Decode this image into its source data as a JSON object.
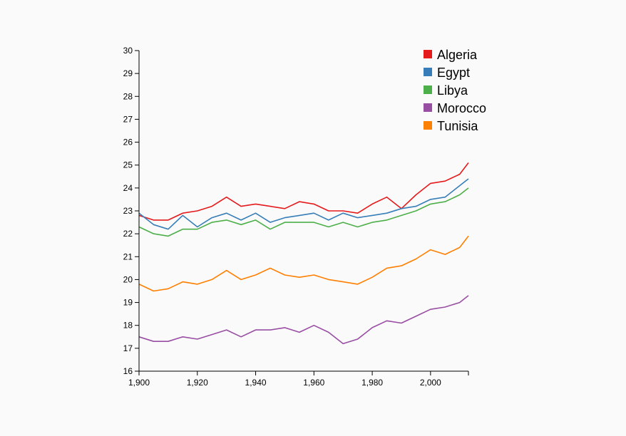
{
  "chart_data": {
    "type": "line",
    "title": "",
    "xlabel": "",
    "ylabel": "",
    "xlim": [
      1900,
      2013
    ],
    "ylim": [
      16,
      30
    ],
    "grid": false,
    "legend_position": "top-right",
    "xticks": [
      1900,
      1920,
      1940,
      1960,
      1980,
      2000
    ],
    "xtick_labels": [
      "1,900",
      "1,920",
      "1,940",
      "1,960",
      "1,980",
      "2,000"
    ],
    "yticks": [
      16,
      17,
      18,
      19,
      20,
      21,
      22,
      23,
      24,
      25,
      26,
      27,
      28,
      29,
      30
    ],
    "ytick_labels": [
      "16",
      "17",
      "18",
      "19",
      "20",
      "21",
      "22",
      "23",
      "24",
      "25",
      "26",
      "27",
      "28",
      "29",
      "30"
    ],
    "x": [
      1900,
      1905,
      1910,
      1915,
      1920,
      1925,
      1930,
      1935,
      1940,
      1945,
      1950,
      1955,
      1960,
      1965,
      1970,
      1975,
      1980,
      1985,
      1990,
      1995,
      2000,
      2005,
      2010,
      2013
    ],
    "series": [
      {
        "name": "Algeria",
        "color": "#e41a1c",
        "values": [
          22.8,
          22.6,
          22.6,
          22.9,
          23.0,
          23.2,
          23.6,
          23.2,
          23.3,
          23.2,
          23.1,
          23.4,
          23.3,
          23.0,
          23.0,
          22.9,
          23.3,
          23.6,
          23.1,
          23.7,
          24.2,
          24.3,
          24.6,
          25.1
        ]
      },
      {
        "name": "Egypt",
        "color": "#377eb8",
        "values": [
          22.9,
          22.4,
          22.2,
          22.8,
          22.3,
          22.7,
          22.9,
          22.6,
          22.9,
          22.5,
          22.7,
          22.8,
          22.9,
          22.6,
          22.9,
          22.7,
          22.8,
          22.9,
          23.1,
          23.2,
          23.5,
          23.6,
          24.1,
          24.4
        ]
      },
      {
        "name": "Libya",
        "color": "#4daf4a",
        "values": [
          22.3,
          22.0,
          21.9,
          22.2,
          22.2,
          22.5,
          22.6,
          22.4,
          22.6,
          22.2,
          22.5,
          22.5,
          22.5,
          22.3,
          22.5,
          22.3,
          22.5,
          22.6,
          22.8,
          23.0,
          23.3,
          23.4,
          23.7,
          24.0
        ]
      },
      {
        "name": "Morocco",
        "color": "#984ea3",
        "values": [
          17.5,
          17.3,
          17.3,
          17.5,
          17.4,
          17.6,
          17.8,
          17.5,
          17.8,
          17.8,
          17.9,
          17.7,
          18.0,
          17.7,
          17.2,
          17.4,
          17.9,
          18.2,
          18.1,
          18.4,
          18.7,
          18.8,
          19.0,
          19.3
        ]
      },
      {
        "name": "Tunisia",
        "color": "#ff7f00",
        "values": [
          19.8,
          19.5,
          19.6,
          19.9,
          19.8,
          20.0,
          20.4,
          20.0,
          20.2,
          20.5,
          20.2,
          20.1,
          20.2,
          20.0,
          19.9,
          19.8,
          20.1,
          20.5,
          20.6,
          20.9,
          21.3,
          21.1,
          21.4,
          21.9
        ]
      }
    ]
  }
}
